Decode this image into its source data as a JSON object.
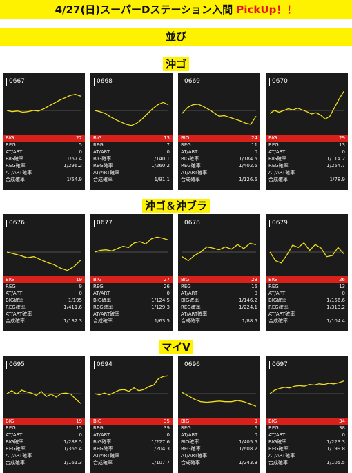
{
  "header": {
    "title": "4/27(日)スーパーDステーション入間",
    "pickup": "PickUp！！"
  },
  "subheader": {
    "label": "並び"
  },
  "labels": {
    "big": "BIG",
    "reg": "REG",
    "at": "AT/ART",
    "big_rate": "BIG確率",
    "reg_rate": "REG確率",
    "at_rate": "AT/ART確率",
    "total_rate": "合成確率"
  },
  "colors": {
    "banner": "#fff200",
    "panel": "#1b1b1b",
    "big_bar": "#d9211c",
    "line": "#f2e01a",
    "pickup": "#e8141b"
  },
  "sections": [
    {
      "title": "沖ゴ",
      "machines": [
        {
          "id": "0667",
          "big": "22",
          "reg": "5",
          "at": "0",
          "big_rate": "1/67.4",
          "reg_rate": "1/296.2",
          "at_rate": "",
          "total_rate": "1/54.9",
          "trend": [
            0,
            -2,
            -1,
            -3,
            -2,
            0,
            -1,
            3,
            8,
            13,
            18,
            22,
            26,
            28,
            25
          ]
        },
        {
          "id": "0668",
          "big": "13",
          "reg": "7",
          "at": "0",
          "big_rate": "1/140.1",
          "reg_rate": "1/260.2",
          "at_rate": "",
          "total_rate": "1/91.1",
          "trend": [
            0,
            -2,
            -5,
            -11,
            -16,
            -20,
            -24,
            -26,
            -22,
            -15,
            -6,
            3,
            10,
            14,
            10
          ]
        },
        {
          "id": "0669",
          "big": "24",
          "reg": "11",
          "at": "0",
          "big_rate": "1/184.5",
          "reg_rate": "1/402.5",
          "at_rate": "",
          "total_rate": "1/126.5",
          "trend": [
            -5,
            5,
            10,
            11,
            7,
            2,
            -4,
            -10,
            -9,
            -12,
            -15,
            -18,
            -22,
            -24,
            -10
          ]
        },
        {
          "id": "0670",
          "big": "29",
          "reg": "13",
          "at": "0",
          "big_rate": "1/114.2",
          "reg_rate": "1/254.7",
          "at_rate": "",
          "total_rate": "1/78.9",
          "trend": [
            -5,
            0,
            -3,
            0,
            3,
            1,
            4,
            1,
            -2,
            -6,
            -4,
            -8,
            -15,
            -10,
            5,
            20,
            33
          ]
        }
      ]
    },
    {
      "title": "沖ゴ＆沖ブラ",
      "machines": [
        {
          "id": "0676",
          "big": "19",
          "reg": "9",
          "at": "0",
          "big_rate": "1/195",
          "reg_rate": "1/411.6",
          "at_rate": "",
          "total_rate": "1/132.3",
          "trend": [
            0,
            -3,
            -6,
            -10,
            -8,
            -13,
            -18,
            -22,
            -28,
            -32,
            -25,
            -14
          ]
        },
        {
          "id": "0677",
          "big": "27",
          "reg": "26",
          "at": "0",
          "big_rate": "1/124.5",
          "reg_rate": "1/129.3",
          "at_rate": "",
          "total_rate": "1/63.5",
          "trend": [
            0,
            3,
            4,
            2,
            6,
            10,
            8,
            16,
            18,
            14,
            23,
            26,
            24,
            21
          ]
        },
        {
          "id": "0678",
          "big": "23",
          "reg": "15",
          "at": "0",
          "big_rate": "1/146.2",
          "reg_rate": "1/224.1",
          "at_rate": "",
          "total_rate": "1/88.5",
          "trend": [
            -8,
            -15,
            -6,
            0,
            9,
            7,
            4,
            9,
            5,
            13,
            6,
            15,
            13
          ]
        },
        {
          "id": "0679",
          "big": "26",
          "reg": "13",
          "at": "0",
          "big_rate": "1/156.6",
          "reg_rate": "1/313.2",
          "at_rate": "",
          "total_rate": "1/104.4",
          "trend": [
            0,
            -15,
            -19,
            -5,
            12,
            8,
            16,
            3,
            13,
            7,
            -8,
            -6,
            8,
            -3
          ]
        }
      ]
    },
    {
      "title": "マイV",
      "machines": [
        {
          "id": "0695",
          "big": "19",
          "reg": "15",
          "at": "0",
          "big_rate": "1/288.5",
          "reg_rate": "1/365.4",
          "at_rate": "",
          "total_rate": "1/161.3",
          "trend": [
            0,
            5,
            -1,
            6,
            3,
            1,
            -3,
            4,
            -5,
            -1,
            -6,
            0,
            1,
            -1,
            -10,
            -17
          ]
        },
        {
          "id": "0694",
          "big": "35",
          "reg": "39",
          "at": "0",
          "big_rate": "1/227.6",
          "reg_rate": "1/204.3",
          "at_rate": "",
          "total_rate": "1/107.7",
          "trend": [
            0,
            -2,
            1,
            -2,
            2,
            6,
            7,
            4,
            10,
            5,
            7,
            12,
            15,
            26,
            30,
            31
          ]
        },
        {
          "id": "0696",
          "big": "9",
          "reg": "6",
          "at": "0",
          "big_rate": "1/405.5",
          "reg_rate": "1/608.2",
          "at_rate": "",
          "total_rate": "1/243.3",
          "trend": [
            2,
            -4,
            -10,
            -14,
            -15,
            -14,
            -13,
            -14,
            -14,
            -12,
            -14,
            -18,
            -22
          ]
        },
        {
          "id": "0697",
          "big": "34",
          "reg": "38",
          "at": "0",
          "big_rate": "1/223.3",
          "reg_rate": "1/199.8",
          "at_rate": "",
          "total_rate": "1/105.5",
          "trend": [
            0,
            6,
            9,
            11,
            10,
            13,
            14,
            13,
            16,
            15,
            17,
            16,
            18,
            17,
            19,
            22
          ]
        }
      ]
    }
  ]
}
